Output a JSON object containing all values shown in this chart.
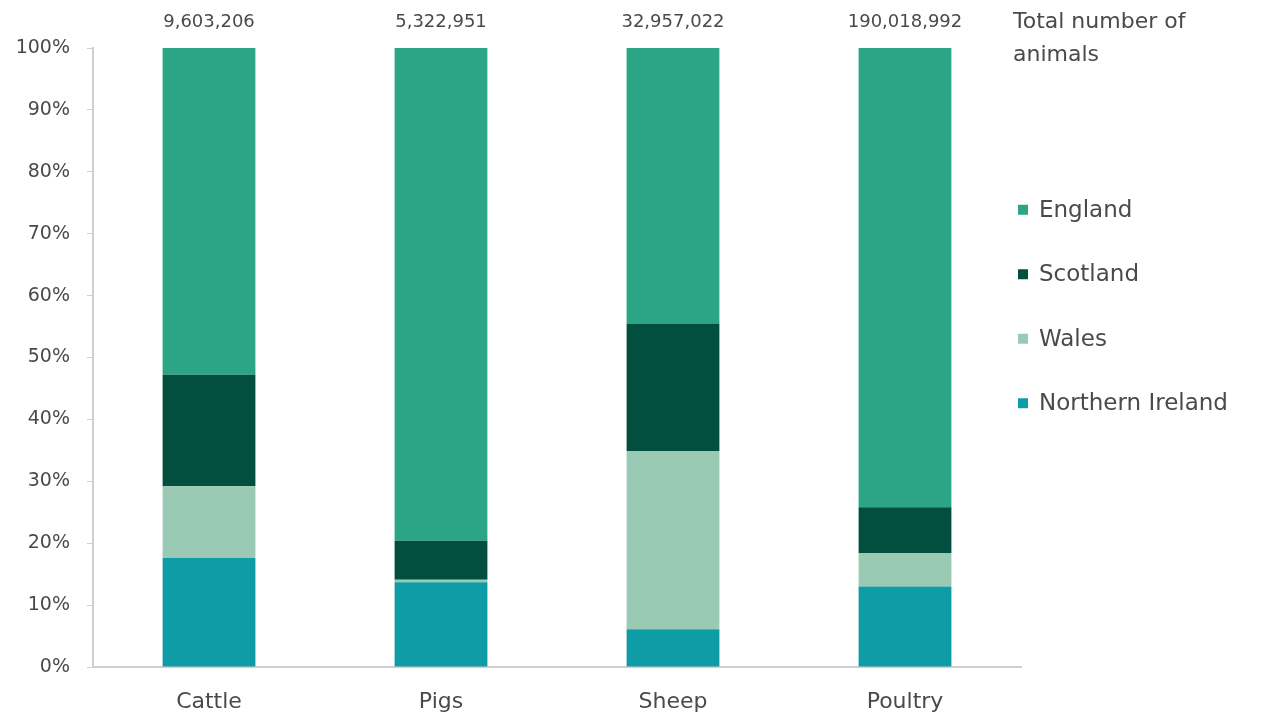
{
  "chart_data": {
    "type": "bar",
    "stacked": true,
    "categories": [
      "Cattle",
      "Pigs",
      "Sheep",
      "Poultry"
    ],
    "series": [
      {
        "name": "Northern Ireland",
        "color": "#0e9ca6",
        "values": [
          17.6,
          13.7,
          6.1,
          13.0
        ]
      },
      {
        "name": "Wales",
        "color": "#9bcab4",
        "values": [
          11.6,
          0.4,
          28.8,
          5.4
        ]
      },
      {
        "name": "Scotland",
        "color": "#034f3f",
        "values": [
          18.0,
          6.3,
          20.6,
          7.4
        ]
      },
      {
        "name": "England",
        "color": "#2ba586",
        "values": [
          52.8,
          79.6,
          44.5,
          74.2
        ]
      }
    ],
    "ylim": [
      0,
      100
    ],
    "yticks": [
      {
        "value": 0,
        "label": "0%"
      },
      {
        "value": 10,
        "label": "10%"
      },
      {
        "value": 20,
        "label": "20%"
      },
      {
        "value": 30,
        "label": "30%"
      },
      {
        "value": 40,
        "label": "40%"
      },
      {
        "value": 50,
        "label": "50%"
      },
      {
        "value": 60,
        "label": "60%"
      },
      {
        "value": 70,
        "label": "70%"
      },
      {
        "value": 80,
        "label": "80%"
      },
      {
        "value": 90,
        "label": "90%"
      },
      {
        "value": 100,
        "label": "100%"
      }
    ],
    "annotations": [
      {
        "text": "9,603,206",
        "x": "Cattle",
        "y": 100
      },
      {
        "text": "5,322,951",
        "x": "Pigs",
        "y": 100
      },
      {
        "text": "32,957,022",
        "x": "Sheep",
        "y": 100
      },
      {
        "text": "190,018,992",
        "x": "Poultry",
        "y": 100
      },
      "Total number of animals"
    ],
    "legend": "right"
  }
}
